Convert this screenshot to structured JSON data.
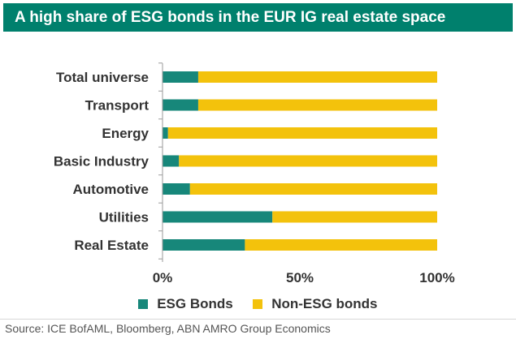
{
  "title": "A high share of ESG bonds in the EUR IG real estate space",
  "source": "Source: ICE BofAML, Bloomberg, ABN AMRO Group Economics",
  "colors": {
    "banner": "#00806d",
    "esg": "#17877a",
    "non_esg": "#f3c20c"
  },
  "chart_data": {
    "type": "bar",
    "orientation": "horizontal",
    "stacked": "percent",
    "title": "A high share of ESG bonds in the EUR IG real estate space",
    "xlabel": "",
    "ylabel": "",
    "xlim": [
      0,
      100
    ],
    "x_ticks": [
      "0%",
      "50%",
      "100%"
    ],
    "categories": [
      "Total universe",
      "Transport",
      "Energy",
      "Basic Industry",
      "Automotive",
      "Utilities",
      "Real Estate"
    ],
    "series": [
      {
        "name": "ESG Bonds",
        "color": "#17877a",
        "values": [
          13,
          13,
          2,
          6,
          10,
          40,
          30
        ]
      },
      {
        "name": "Non-ESG bonds",
        "color": "#f3c20c",
        "values": [
          87,
          87,
          98,
          94,
          90,
          60,
          70
        ]
      }
    ],
    "legend": [
      "ESG Bonds",
      "Non-ESG bonds"
    ],
    "legend_position": "bottom",
    "grid": false
  }
}
